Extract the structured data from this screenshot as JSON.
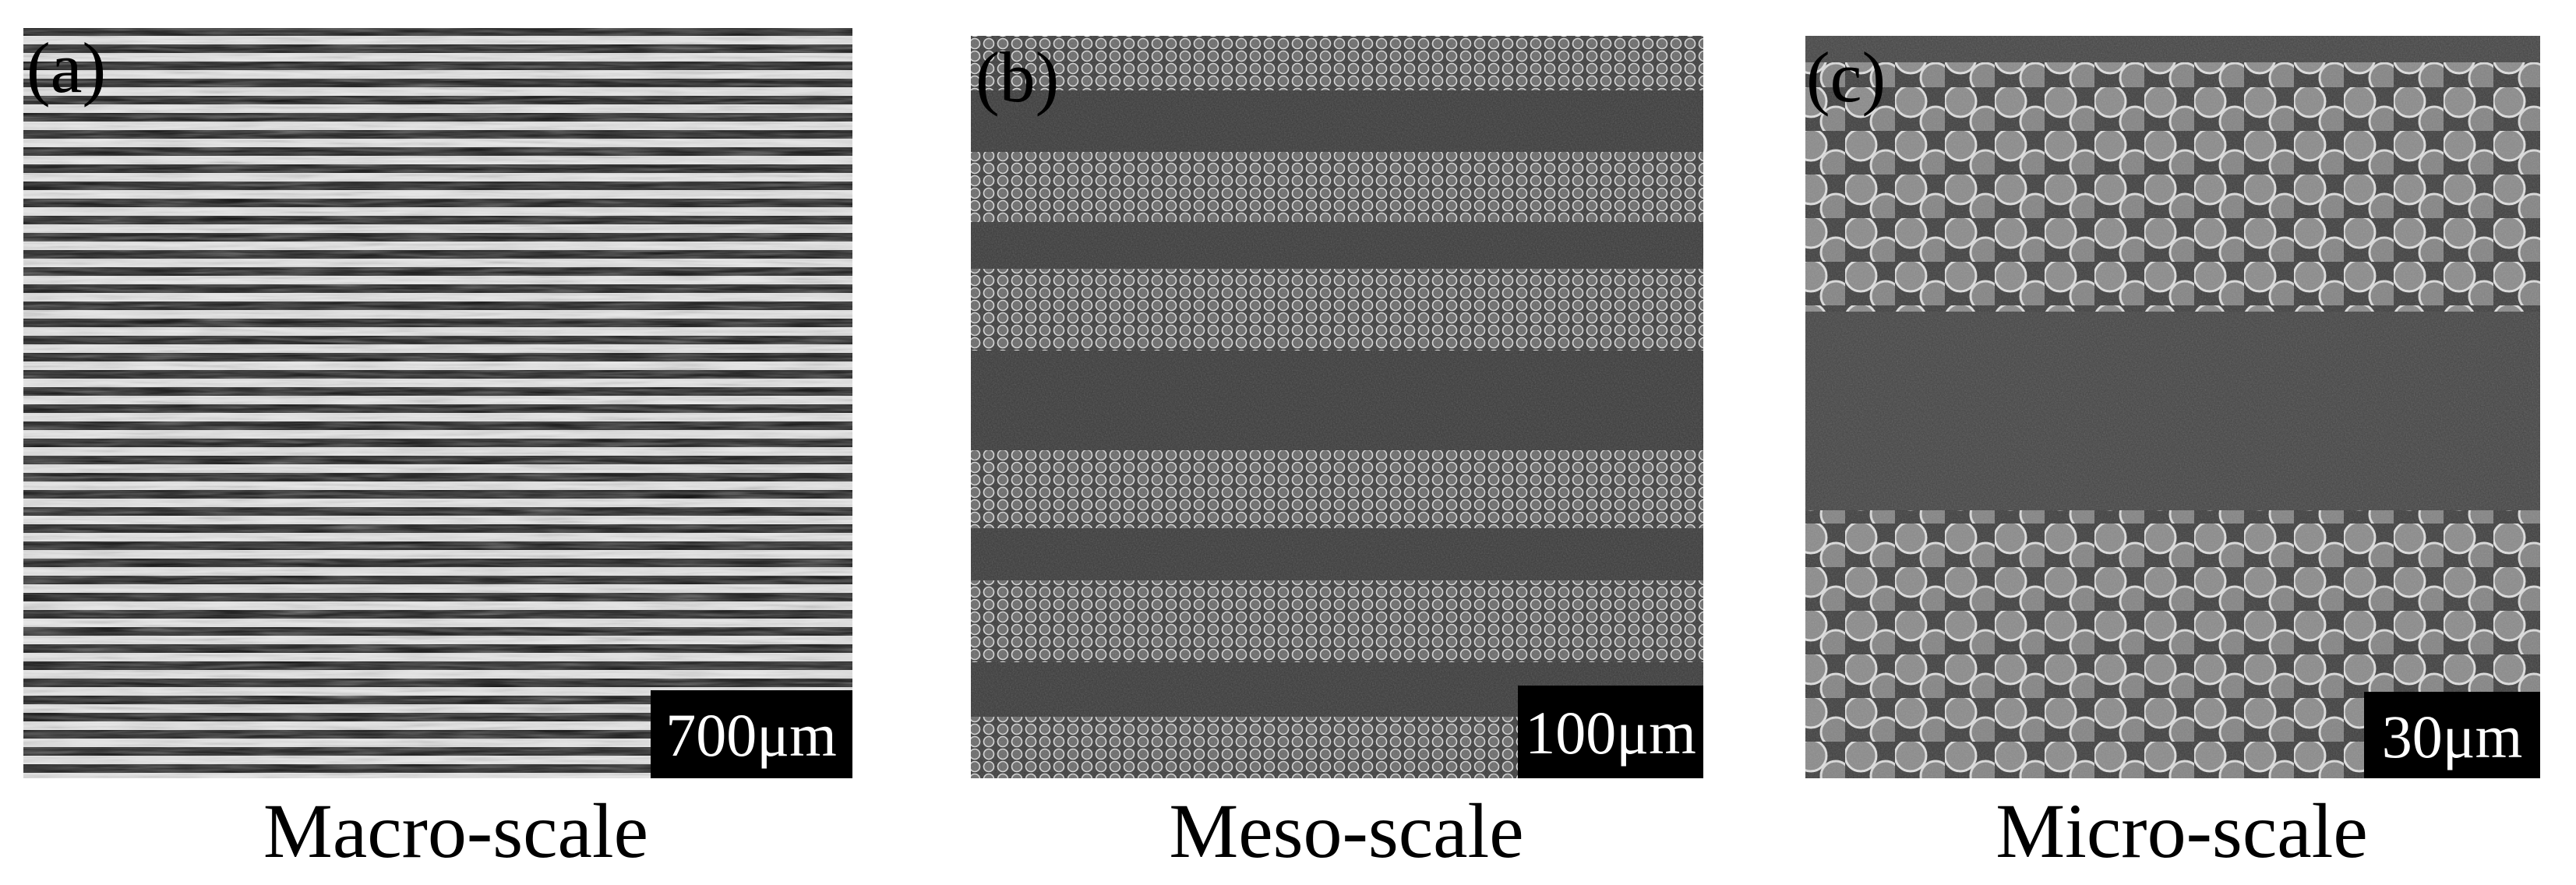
{
  "panels": [
    {
      "label": "(a)",
      "scale_bar": "700μm",
      "caption": "Macro-scale"
    },
    {
      "label": "(b)",
      "scale_bar": "100μm",
      "caption": "Meso-scale"
    },
    {
      "label": "(c)",
      "scale_bar": "30μm",
      "caption": "Micro-scale"
    }
  ]
}
